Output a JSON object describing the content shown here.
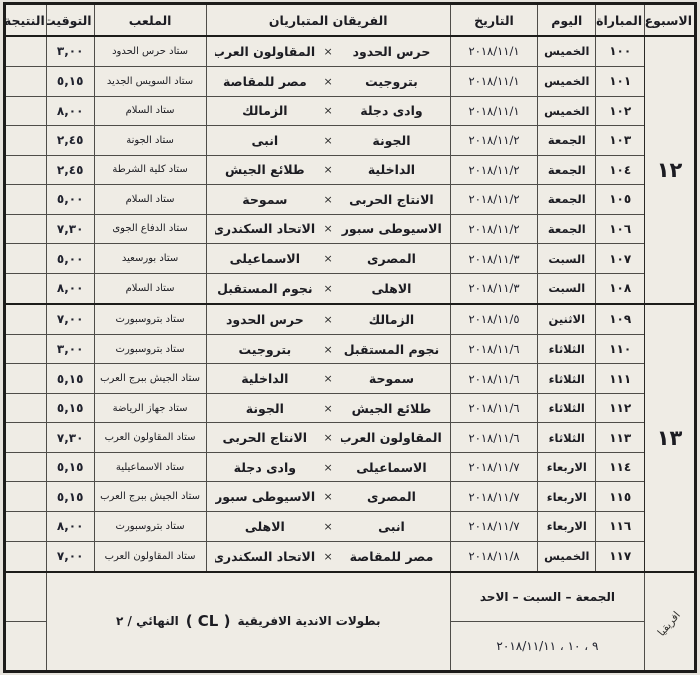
{
  "header": {
    "week": "الاسبوع",
    "match": "المباراة",
    "day": "اليوم",
    "date": "التاريخ",
    "teams": "الفريقان المتباريان",
    "stadium": "الملعب",
    "time": "التوقيت",
    "result": "النتيجة"
  },
  "labels": {
    "vs": "×"
  },
  "weeks": [
    {
      "num": "١٢"
    },
    {
      "num": "١٣"
    }
  ],
  "rows": [
    {
      "no": "١٠٠",
      "day": "الخميس",
      "date": "٢٠١٨/١١/١",
      "home": "حرس الحدود",
      "away": "المقاولون العرب",
      "stadium": "ستاد حرس الحدود",
      "time": "٣,٠٠",
      "result": ""
    },
    {
      "no": "١٠١",
      "day": "الخميس",
      "date": "٢٠١٨/١١/١",
      "home": "بتروجيت",
      "away": "مصر للمقاصة",
      "stadium": "ستاد السويس الجديد",
      "time": "٥,١٥",
      "result": ""
    },
    {
      "no": "١٠٢",
      "day": "الخميس",
      "date": "٢٠١٨/١١/١",
      "home": "وادى دجلة",
      "away": "الزمالك",
      "stadium": "ستاد السلام",
      "time": "٨,٠٠",
      "result": ""
    },
    {
      "no": "١٠٣",
      "day": "الجمعة",
      "date": "٢٠١٨/١١/٢",
      "home": "الجونة",
      "away": "انبى",
      "stadium": "ستاد الجونة",
      "time": "٢,٤٥",
      "result": ""
    },
    {
      "no": "١٠٤",
      "day": "الجمعة",
      "date": "٢٠١٨/١١/٢",
      "home": "الداخلية",
      "away": "طلائع الجيش",
      "stadium": "ستاد كلية الشرطة",
      "time": "٢,٤٥",
      "result": ""
    },
    {
      "no": "١٠٥",
      "day": "الجمعة",
      "date": "٢٠١٨/١١/٢",
      "home": "الانتاج الحربى",
      "away": "سموحة",
      "stadium": "ستاد السلام",
      "time": "٥,٠٠",
      "result": ""
    },
    {
      "no": "١٠٦",
      "day": "الجمعة",
      "date": "٢٠١٨/١١/٢",
      "home": "الاسيوطى سبورت",
      "away": "الاتحاد السكندرى",
      "stadium": "ستاد الدفاع الجوى",
      "time": "٧,٣٠",
      "result": ""
    },
    {
      "no": "١٠٧",
      "day": "السبت",
      "date": "٢٠١٨/١١/٣",
      "home": "المصرى",
      "away": "الاسماعيلى",
      "stadium": "ستاد بورسعيد",
      "time": "٥,٠٠",
      "result": ""
    },
    {
      "no": "١٠٨",
      "day": "السبت",
      "date": "٢٠١٨/١١/٣",
      "home": "الاهلى",
      "away": "نجوم المستقبل",
      "stadium": "ستاد السلام",
      "time": "٨,٠٠",
      "result": ""
    },
    {
      "no": "١٠٩",
      "day": "الاثنين",
      "date": "٢٠١٨/١١/٥",
      "home": "الزمالك",
      "away": "حرس الحدود",
      "stadium": "ستاد بتروسبورت",
      "time": "٧,٠٠",
      "result": ""
    },
    {
      "no": "١١٠",
      "day": "الثلاثاء",
      "date": "٢٠١٨/١١/٦",
      "home": "نجوم المستقبل",
      "away": "بتروجيت",
      "stadium": "ستاد بتروسبورت",
      "time": "٣,٠٠",
      "result": ""
    },
    {
      "no": "١١١",
      "day": "الثلاثاء",
      "date": "٢٠١٨/١١/٦",
      "home": "سموحة",
      "away": "الداخلية",
      "stadium": "ستاد الجيش ببرج العرب",
      "time": "٥,١٥",
      "result": ""
    },
    {
      "no": "١١٢",
      "day": "الثلاثاء",
      "date": "٢٠١٨/١١/٦",
      "home": "طلائع الجيش",
      "away": "الجونة",
      "stadium": "ستاد جهاز الرياضة",
      "time": "٥,١٥",
      "result": ""
    },
    {
      "no": "١١٣",
      "day": "الثلاثاء",
      "date": "٢٠١٨/١١/٦",
      "home": "المقاولون العرب",
      "away": "الانتاج الحربى",
      "stadium": "ستاد المقاولون العرب",
      "time": "٧,٣٠",
      "result": ""
    },
    {
      "no": "١١٤",
      "day": "الاربعاء",
      "date": "٢٠١٨/١١/٧",
      "home": "الاسماعيلى",
      "away": "وادى دجلة",
      "stadium": "ستاد الاسماعيلية",
      "time": "٥,١٥",
      "result": ""
    },
    {
      "no": "١١٥",
      "day": "الاربعاء",
      "date": "٢٠١٨/١١/٧",
      "home": "المصرى",
      "away": "الاسيوطى سبورت",
      "stadium": "ستاد الجيش ببرج العرب",
      "time": "٥,١٥",
      "result": ""
    },
    {
      "no": "١١٦",
      "day": "الاربعاء",
      "date": "٢٠١٨/١١/٧",
      "home": "انبى",
      "away": "الاهلى",
      "stadium": "ستاد بتروسبورت",
      "time": "٨,٠٠",
      "result": ""
    },
    {
      "no": "١١٧",
      "day": "الخميس",
      "date": "٢٠١٨/١١/٨",
      "home": "مصر للمقاصة",
      "away": "الاتحاد السكندرى",
      "stadium": "ستاد المقاولون العرب",
      "time": "٧,٠٠",
      "result": ""
    }
  ],
  "footer": {
    "africa": "افريقيا",
    "days": "الجمعة – السبت – الاحد",
    "dates": "٩ ، ١٠ ، ٢٠١٨/١١/١١",
    "cl_text": "بطولات الاندية الافريقية",
    "cl_code": "( CL )",
    "cl_tail": "النهائي / ٢"
  }
}
